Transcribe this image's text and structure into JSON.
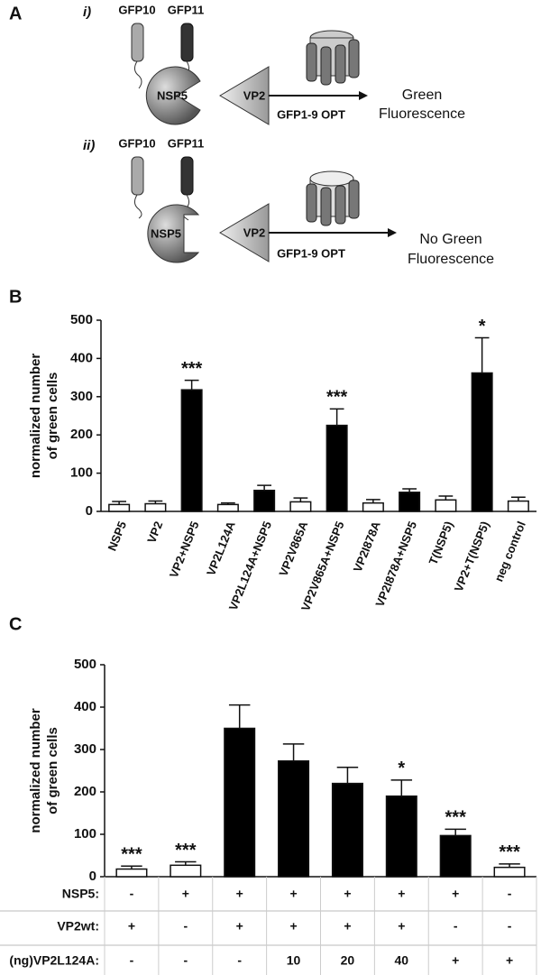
{
  "panel_a": {
    "label": "A",
    "rows": [
      {
        "label": "i)",
        "tag1": "GFP10",
        "tag2": "GFP11",
        "protein1": "NSP5",
        "protein2": "VP2",
        "reagent": "GFP1-9 OPT",
        "result": [
          "Green",
          "Fluorescence"
        ]
      },
      {
        "label": "ii)",
        "tag1": "GFP10",
        "tag2": "GFP11",
        "protein1": "NSP5",
        "protein2": "VP2",
        "reagent": "GFP1-9 OPT",
        "result": [
          "No Green",
          "Fluorescence"
        ]
      }
    ]
  },
  "chart_data": [
    {
      "type": "bar",
      "panel_label": "B",
      "ylabel": [
        "normalized number",
        "of  green cells"
      ],
      "categories": [
        "NSP5",
        "VP2",
        "VP2+NSP5",
        "VP2L124A",
        "VP2L124A+NSP5",
        "VP2V865A",
        "VP2V865A+NSP5",
        "VP2I878A",
        "VP2I878A+NSP5",
        "T(NSP5)",
        "VP2+T(NSP5)",
        "neg control"
      ],
      "values": [
        18,
        20,
        318,
        18,
        55,
        25,
        225,
        22,
        50,
        30,
        362,
        27
      ],
      "errors": [
        8,
        7,
        25,
        4,
        13,
        10,
        43,
        9,
        9,
        10,
        92,
        10
      ],
      "colors": [
        "#ffffff",
        "#ffffff",
        "#000000",
        "#ffffff",
        "#000000",
        "#ffffff",
        "#000000",
        "#ffffff",
        "#000000",
        "#ffffff",
        "#000000",
        "#ffffff"
      ],
      "annotations": [
        null,
        null,
        "***",
        null,
        null,
        null,
        "***",
        null,
        null,
        null,
        "*",
        null
      ],
      "ylim": [
        0,
        500
      ],
      "yticks": [
        0,
        100,
        200,
        300,
        400,
        500
      ]
    },
    {
      "type": "bar",
      "panel_label": "C",
      "ylabel": [
        "normalized number",
        "of green cells"
      ],
      "values": [
        18,
        27,
        350,
        273,
        220,
        190,
        97,
        22
      ],
      "errors": [
        7,
        8,
        55,
        40,
        38,
        38,
        15,
        8
      ],
      "colors": [
        "#ffffff",
        "#ffffff",
        "#000000",
        "#000000",
        "#000000",
        "#000000",
        "#000000",
        "#ffffff"
      ],
      "annotations": [
        "***",
        "***",
        null,
        null,
        null,
        "*",
        "***",
        "***"
      ],
      "ylim": [
        0,
        500
      ],
      "yticks": [
        0,
        100,
        200,
        300,
        400,
        500
      ],
      "table": [
        {
          "label": "NSP5:",
          "cells": [
            "-",
            "+",
            "+",
            "+",
            "+",
            "+",
            "+",
            "-"
          ]
        },
        {
          "label": "VP2wt:",
          "cells": [
            "+",
            "-",
            "+",
            "+",
            "+",
            "+",
            "-",
            "-"
          ]
        },
        {
          "label": "(ng)VP2L124A:",
          "cells": [
            "-",
            "-",
            "-",
            "10",
            "20",
            "40",
            "+",
            "+"
          ]
        }
      ]
    }
  ]
}
